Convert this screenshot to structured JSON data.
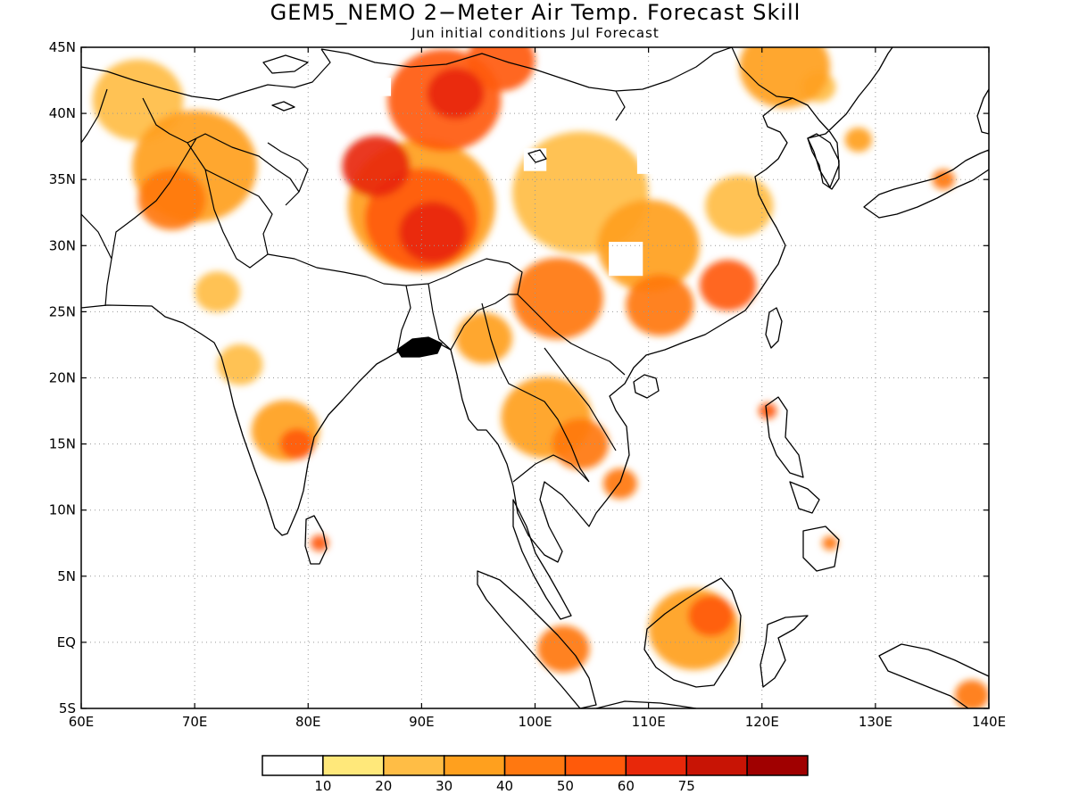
{
  "title": "GEM5_NEMO 2−Meter Air Temp. Forecast Skill",
  "subtitle": "Jun initial conditions  Jul Forecast",
  "map": {
    "lon_range": [
      60,
      140
    ],
    "lat_range": [
      -5,
      45
    ],
    "lat_ticks": [
      {
        "value": 45,
        "label": "45N"
      },
      {
        "value": 40,
        "label": "40N"
      },
      {
        "value": 35,
        "label": "35N"
      },
      {
        "value": 30,
        "label": "30N"
      },
      {
        "value": 25,
        "label": "25N"
      },
      {
        "value": 20,
        "label": "20N"
      },
      {
        "value": 15,
        "label": "15N"
      },
      {
        "value": 10,
        "label": "10N"
      },
      {
        "value": 5,
        "label": "5N"
      },
      {
        "value": 0,
        "label": "EQ"
      },
      {
        "value": -5,
        "label": "5S"
      }
    ],
    "lon_ticks": [
      {
        "value": 60,
        "label": "60E"
      },
      {
        "value": 70,
        "label": "70E"
      },
      {
        "value": 80,
        "label": "80E"
      },
      {
        "value": 90,
        "label": "90E"
      },
      {
        "value": 100,
        "label": "100E"
      },
      {
        "value": 110,
        "label": "110E"
      },
      {
        "value": 120,
        "label": "120E"
      },
      {
        "value": 130,
        "label": "130E"
      },
      {
        "value": 140,
        "label": "140E"
      }
    ],
    "gridlines": "dotted"
  },
  "skill_field": {
    "units": "",
    "regions": [
      {
        "lon": 90,
        "lat": 33,
        "r": 6.5,
        "value": 35
      },
      {
        "lon": 90,
        "lat": 32,
        "r": 5,
        "value": 55
      },
      {
        "lon": 91,
        "lat": 31,
        "r": 3,
        "value": 65
      },
      {
        "lon": 86,
        "lat": 36,
        "r": 3,
        "value": 62
      },
      {
        "lon": 92,
        "lat": 41,
        "r": 5,
        "value": 50
      },
      {
        "lon": 93,
        "lat": 41.5,
        "r": 2.5,
        "value": 62
      },
      {
        "lon": 97,
        "lat": 44,
        "r": 3,
        "value": 55
      },
      {
        "lon": 70,
        "lat": 36,
        "r": 5.5,
        "value": 30
      },
      {
        "lon": 68,
        "lat": 33.5,
        "r": 3,
        "value": 45
      },
      {
        "lon": 65,
        "lat": 41,
        "r": 4,
        "value": 22
      },
      {
        "lon": 104,
        "lat": 34,
        "r": 6,
        "value": 28
      },
      {
        "lon": 102,
        "lat": 26,
        "r": 4,
        "value": 45
      },
      {
        "lon": 110,
        "lat": 30,
        "r": 4.5,
        "value": 38
      },
      {
        "lon": 111,
        "lat": 25.5,
        "r": 3,
        "value": 48
      },
      {
        "lon": 117,
        "lat": 27,
        "r": 2.5,
        "value": 52
      },
      {
        "lon": 118,
        "lat": 33,
        "r": 3,
        "value": 25
      },
      {
        "lon": 122,
        "lat": 43.5,
        "r": 4,
        "value": 30
      },
      {
        "lon": 101,
        "lat": 17,
        "r": 4,
        "value": 38
      },
      {
        "lon": 104,
        "lat": 15,
        "r": 2.5,
        "value": 45
      },
      {
        "lon": 107.5,
        "lat": 12,
        "r": 1.5,
        "value": 48
      },
      {
        "lon": 78,
        "lat": 16,
        "r": 3,
        "value": 32
      },
      {
        "lon": 79,
        "lat": 15,
        "r": 1.5,
        "value": 52
      },
      {
        "lon": 74,
        "lat": 21,
        "r": 2,
        "value": 22
      },
      {
        "lon": 72,
        "lat": 26.5,
        "r": 2,
        "value": 28
      },
      {
        "lon": 81,
        "lat": 7.5,
        "r": 0.8,
        "value": 55
      },
      {
        "lon": 114,
        "lat": 1,
        "r": 4,
        "value": 30
      },
      {
        "lon": 115.5,
        "lat": 2,
        "r": 2,
        "value": 52
      },
      {
        "lon": 102.5,
        "lat": -0.5,
        "r": 2.3,
        "value": 42
      },
      {
        "lon": 138.5,
        "lat": -4,
        "r": 1.5,
        "value": 48
      },
      {
        "lon": 136,
        "lat": 35,
        "r": 1,
        "value": 45
      },
      {
        "lon": 128.5,
        "lat": 38,
        "r": 1.2,
        "value": 32
      },
      {
        "lon": 125,
        "lat": 42,
        "r": 1.5,
        "value": 25
      },
      {
        "lon": 120.5,
        "lat": 17.5,
        "r": 0.8,
        "value": 52
      },
      {
        "lon": 126,
        "lat": 7.5,
        "r": 0.7,
        "value": 48
      },
      {
        "lon": 95.5,
        "lat": 23,
        "r": 2.5,
        "value": 35
      }
    ],
    "holes": [
      {
        "lon": 86.5,
        "lat": 42,
        "r": 0.8
      },
      {
        "lon": 112,
        "lat": 38,
        "r": 3
      },
      {
        "lon": 108,
        "lat": 29,
        "r": 1.5
      },
      {
        "lon": 100,
        "lat": 36.5,
        "r": 1
      }
    ]
  },
  "colorbar": {
    "colors": [
      "#ffffff",
      "#ffe87a",
      "#ffbd45",
      "#ffa01e",
      "#ff7810",
      "#ff5a0a",
      "#e8280a",
      "#c81405",
      "#a00000"
    ],
    "labels": [
      "10",
      "20",
      "30",
      "40",
      "50",
      "60",
      "75"
    ]
  }
}
